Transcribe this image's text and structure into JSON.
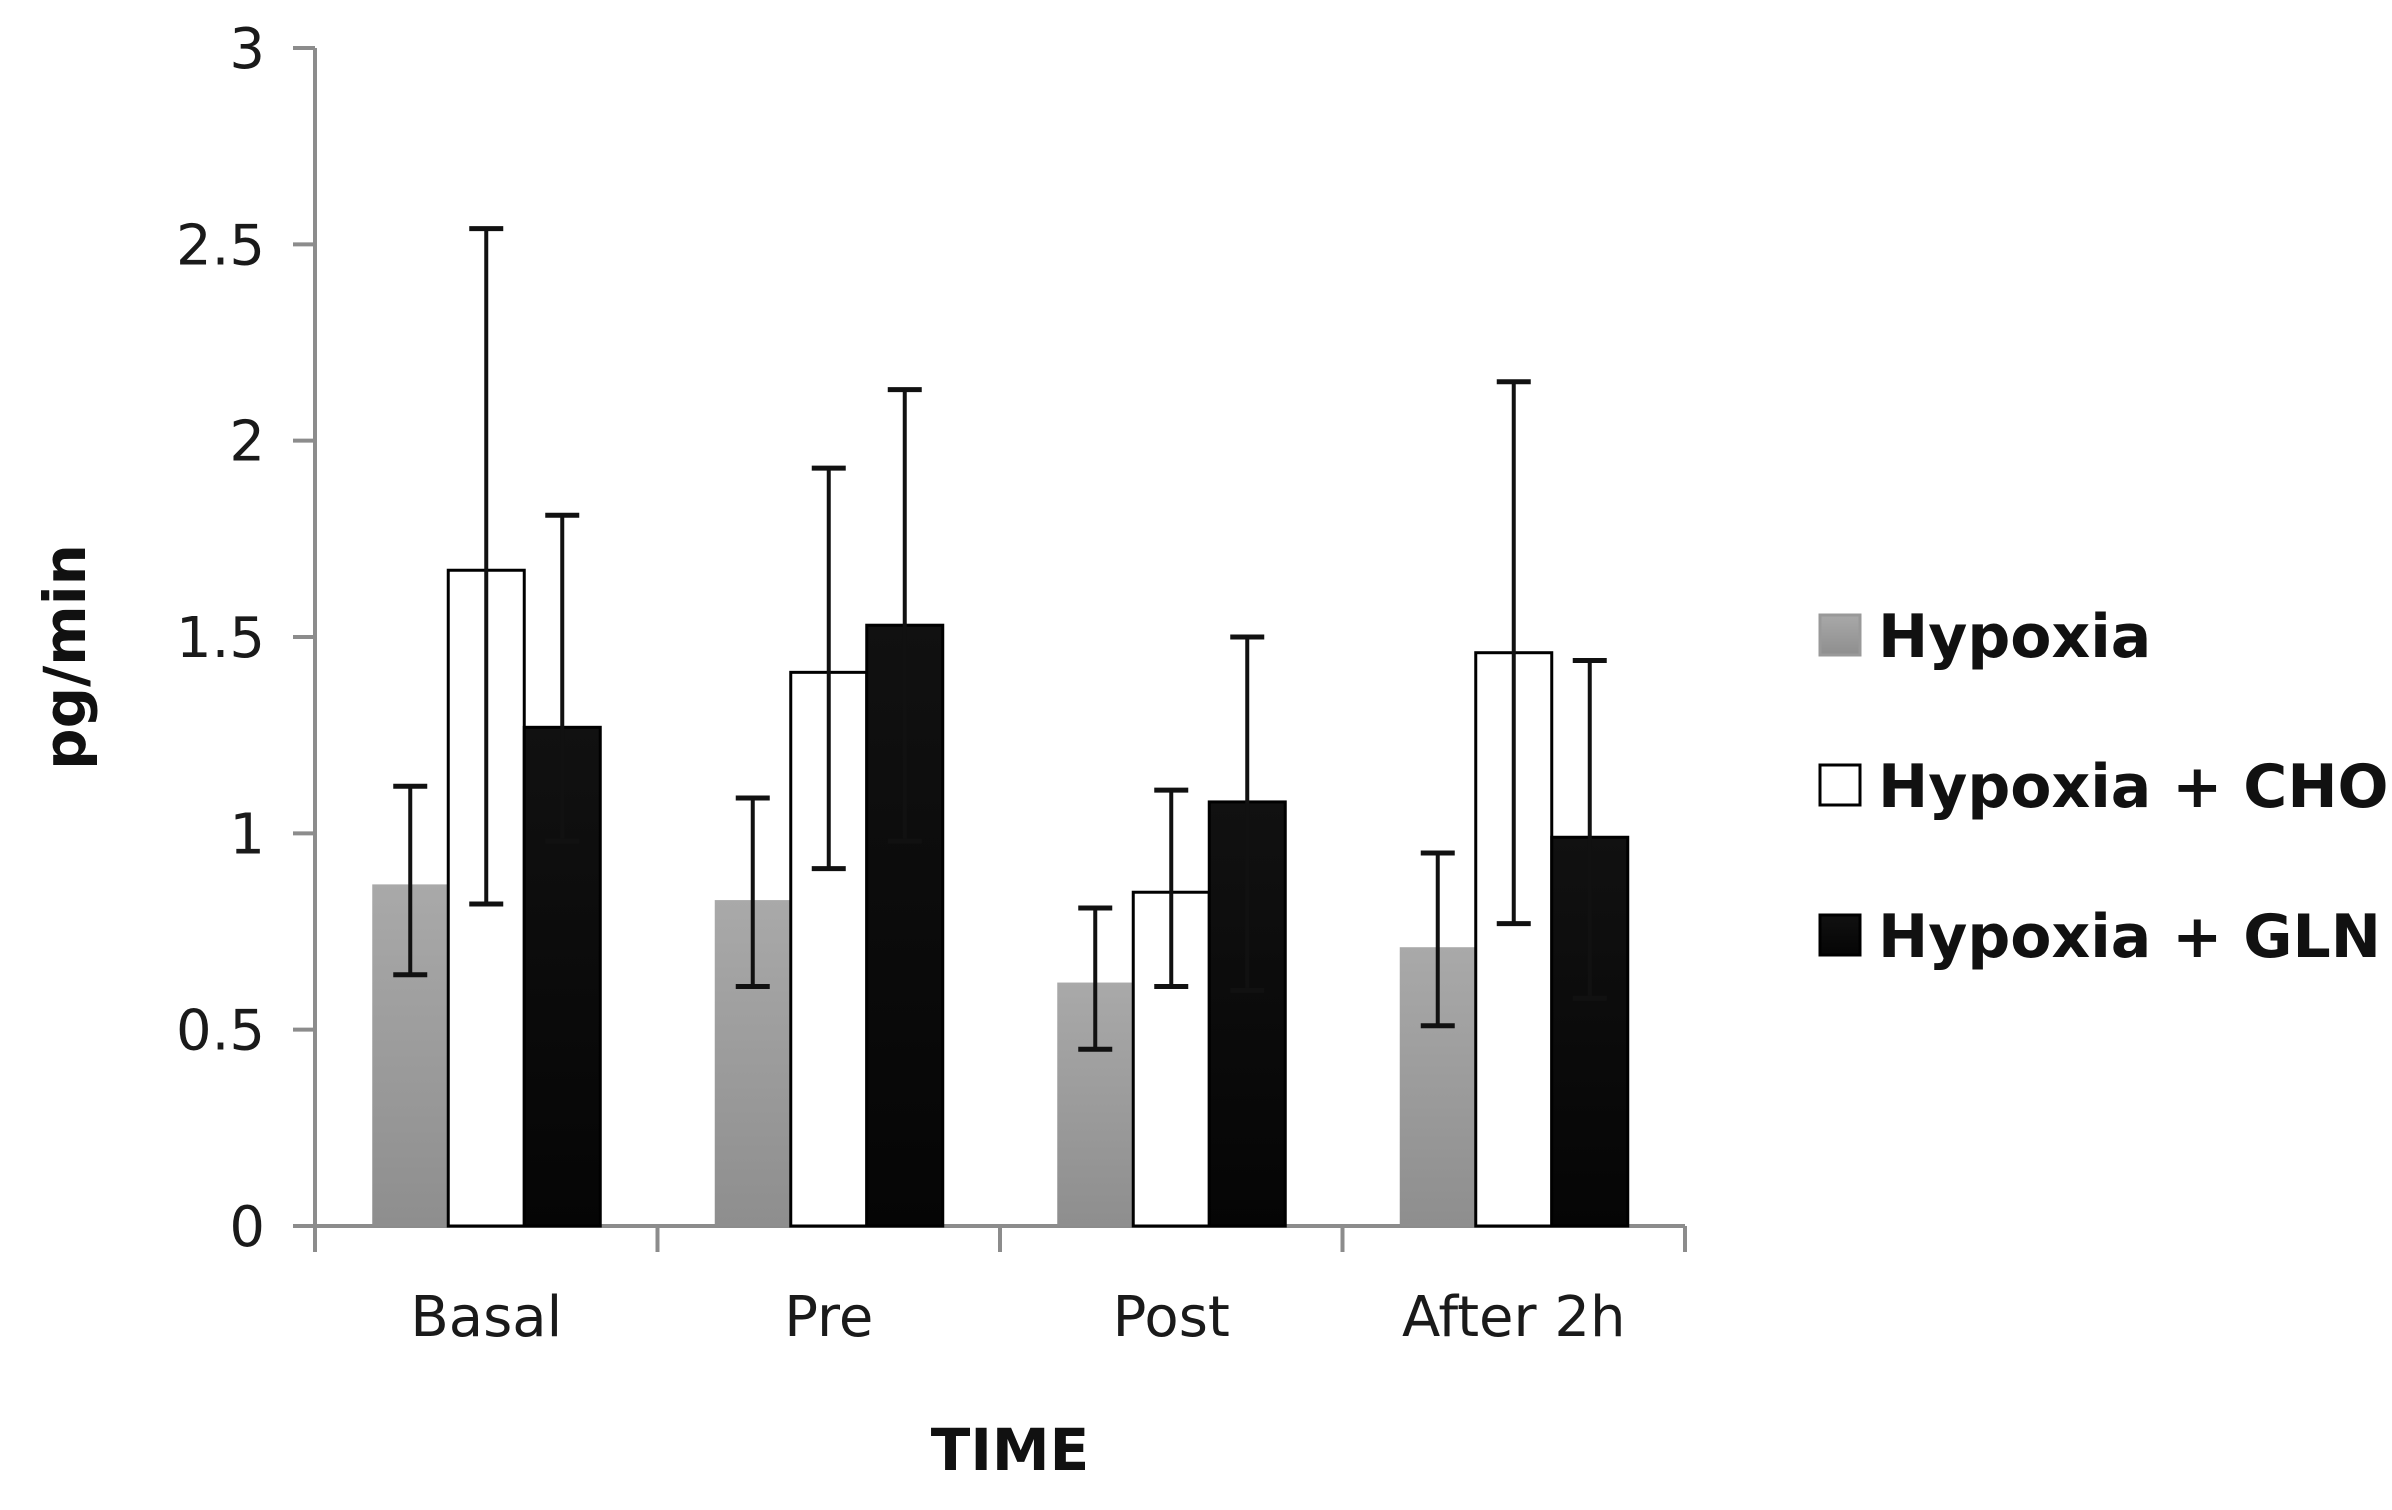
{
  "chart_data": {
    "type": "bar",
    "title": "",
    "xlabel": "TIME",
    "ylabel": "pg/min",
    "ylim": [
      0,
      3
    ],
    "yticks": [
      0,
      0.5,
      1,
      1.5,
      2,
      2.5,
      3
    ],
    "ytick_labels": [
      "0",
      "0.5",
      "1",
      "1.5",
      "2",
      "2.5",
      "3"
    ],
    "grid": false,
    "legend_position": "right",
    "categories": [
      "Basal",
      "Pre",
      "Post",
      "After 2h"
    ],
    "series": [
      {
        "name": "Hypoxia",
        "color": "#9a9a9a",
        "values": [
          0.87,
          0.83,
          0.62,
          0.71
        ],
        "err_low": [
          0.64,
          0.61,
          0.45,
          0.51
        ],
        "err_high": [
          1.12,
          1.09,
          0.81,
          0.95
        ]
      },
      {
        "name": "Hypoxia + CHO",
        "color": "#ffffff",
        "values": [
          1.67,
          1.41,
          0.85,
          1.46
        ],
        "err_low": [
          0.82,
          0.91,
          0.61,
          0.77
        ],
        "err_high": [
          2.54,
          1.93,
          1.11,
          2.15
        ]
      },
      {
        "name": "Hypoxia + GLN",
        "color": "#0a0a0a",
        "values": [
          1.27,
          1.53,
          1.08,
          0.99
        ],
        "err_low": [
          0.98,
          0.98,
          0.6,
          0.58
        ],
        "err_high": [
          1.81,
          2.13,
          1.5,
          1.44
        ]
      }
    ]
  }
}
